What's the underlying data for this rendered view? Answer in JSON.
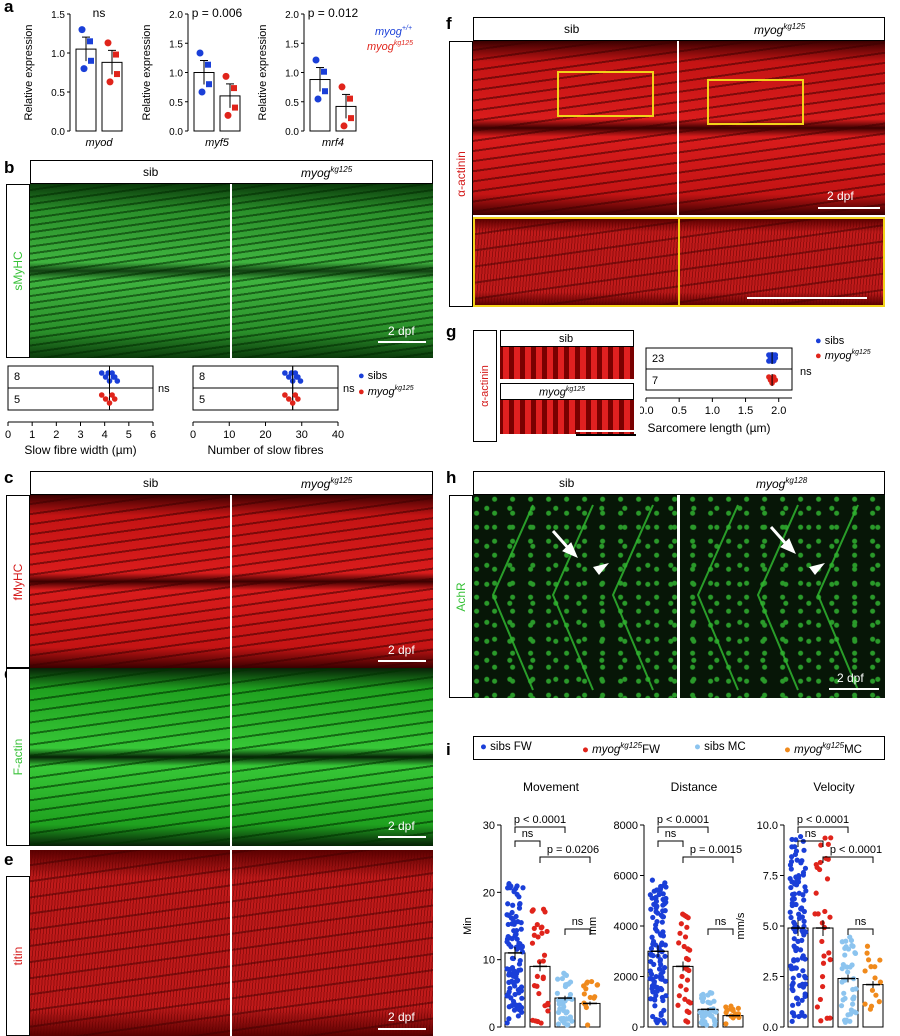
{
  "panels": {
    "a": {
      "label": "a",
      "legend": {
        "wt": "myog",
        "wt_sup": "+/+",
        "mut": "myog",
        "mut_sup": "kg125"
      },
      "charts": [
        {
          "gene": "myod",
          "stat": "ns",
          "ylabel": "Relative expression"
        },
        {
          "gene": "myf5",
          "stat": "p = 0.006",
          "ylabel": "Relative expression"
        },
        {
          "gene": "mrf4",
          "stat": "p = 0.012",
          "ylabel": "Relative expression"
        }
      ]
    },
    "b": {
      "label": "b",
      "sib": "sib",
      "mut": "myog",
      "mut_sup": "kg125",
      "side": "sMyHC",
      "scale": "2 dpf",
      "legend_sibs": "sibs",
      "legend_mut": "myog",
      "legend_mut_sup": "kg125",
      "plot1": {
        "xlabel": "Slow fibre width (µm)",
        "n_sib": "8",
        "n_mut": "5",
        "stat": "ns"
      },
      "plot2": {
        "xlabel": "Number of slow fibres",
        "n_sib": "8",
        "n_mut": "5",
        "stat": "ns"
      }
    },
    "c": {
      "label": "c",
      "sib": "sib",
      "mut": "myog",
      "mut_sup": "kg125",
      "side": "fMyHC",
      "scale": "2 dpf"
    },
    "d": {
      "label": "d",
      "side": "F-actin",
      "scale": "2 dpf"
    },
    "e": {
      "label": "e",
      "side": "titin",
      "scale": "2 dpf"
    },
    "f": {
      "label": "f",
      "sib": "sib",
      "mut": "myog",
      "mut_sup": "kg125",
      "side": "α-actinin",
      "scale": "2 dpf"
    },
    "g": {
      "label": "g",
      "sib": "sib",
      "mut": "myog",
      "mut_sup": "kg125",
      "side": "α-actinin",
      "legend_sibs": "sibs",
      "legend_mut": "myog",
      "legend_mut_sup": "kg125",
      "n_sib": "23",
      "n_mut": "7",
      "stat": "ns",
      "xlabel": "Sarcomere length (µm)"
    },
    "h": {
      "label": "h",
      "sib": "sib",
      "mut": "myog",
      "mut_sup": "kg128",
      "side": "AchR",
      "scale": "2 dpf"
    },
    "i": {
      "label": "i",
      "legend": [
        {
          "text": "sibs FW",
          "color": "#1a3fd8"
        },
        {
          "text": "myog",
          "sup": "kg125",
          "tail": "FW",
          "color": "#e0241b"
        },
        {
          "text": "sibs MC",
          "color": "#8cc4ef"
        },
        {
          "text": "myog",
          "sup": "kg125",
          "tail": "MC",
          "color": "#f08a1c"
        }
      ]
    }
  },
  "colors": {
    "sib": "#1a3fd8",
    "mut": "#e0241b",
    "sibMC": "#8cc4ef",
    "mutMC": "#f08a1c",
    "green": "#38c238",
    "red": "#d41a1a"
  },
  "chart_data": [
    {
      "type": "bar",
      "panel": "a",
      "gene": "myod",
      "categories": [
        "myog+/+",
        "myogkg125"
      ],
      "values": [
        1.05,
        0.88
      ],
      "ylim": [
        0,
        1.5
      ],
      "yticks": [
        "0.0",
        "0.5",
        "1.0",
        "1.5"
      ],
      "ylabel": "Relative expression"
    },
    {
      "type": "bar",
      "panel": "a",
      "gene": "myf5",
      "categories": [
        "myog+/+",
        "myogkg125"
      ],
      "values": [
        1.0,
        0.6
      ],
      "ylim": [
        0,
        2.0
      ],
      "yticks": [
        "0.0",
        "0.5",
        "1.0",
        "1.5",
        "2.0"
      ],
      "ylabel": "Relative expression"
    },
    {
      "type": "bar",
      "panel": "a",
      "gene": "mrf4",
      "categories": [
        "myog+/+",
        "myogkg125"
      ],
      "values": [
        0.88,
        0.42
      ],
      "ylim": [
        0,
        2.0
      ],
      "yticks": [
        "0.0",
        "0.5",
        "1.0",
        "1.5",
        "2.0"
      ],
      "ylabel": "Relative expression"
    },
    {
      "type": "scatter",
      "panel": "b",
      "xlabel": "Slow fibre width (µm)",
      "xticks": [
        "0",
        "1",
        "2",
        "3",
        "4",
        "5",
        "6"
      ],
      "xlim": [
        0,
        6
      ],
      "series": [
        {
          "name": "sibs",
          "mean": 4.2
        },
        {
          "name": "myogkg125",
          "mean": 4.2
        }
      ]
    },
    {
      "type": "scatter",
      "panel": "b",
      "xlabel": "Number of slow fibres",
      "xticks": [
        "0",
        "10",
        "20",
        "30",
        "40"
      ],
      "xlim": [
        0,
        40
      ],
      "series": [
        {
          "name": "sibs",
          "mean": 27.5
        },
        {
          "name": "myogkg125",
          "mean": 27.5
        }
      ]
    },
    {
      "type": "scatter",
      "panel": "g",
      "xlabel": "Sarcomere length (µm)",
      "xticks": [
        "0.0",
        "0.5",
        "1.0",
        "1.5",
        "2.0"
      ],
      "xlim": [
        0,
        2.2
      ],
      "series": [
        {
          "name": "sibs",
          "mean": 1.9
        },
        {
          "name": "myogkg125",
          "mean": 1.9
        }
      ]
    },
    {
      "type": "bar",
      "panel": "i",
      "title": "Movement",
      "ylabel": "Min",
      "ylim": [
        0,
        30
      ],
      "yticks": [
        "0",
        "10",
        "20",
        "30"
      ],
      "categories": [
        "sibs FW",
        "myogkg125 FW",
        "sibs MC",
        "myogkg125 MC"
      ],
      "values": [
        11,
        9,
        4.3,
        3.5
      ],
      "stats": [
        "p < 0.0001",
        "ns",
        "p = 0.0206",
        "ns"
      ]
    },
    {
      "type": "bar",
      "panel": "i",
      "title": "Distance",
      "ylabel": "mm",
      "ylim": [
        0,
        8000
      ],
      "yticks": [
        "0",
        "2000",
        "4000",
        "6000",
        "8000"
      ],
      "categories": [
        "sibs FW",
        "myogkg125 FW",
        "sibs MC",
        "myogkg125 MC"
      ],
      "values": [
        3000,
        2400,
        700,
        450
      ],
      "stats": [
        "p < 0.0001",
        "ns",
        "p = 0.0015",
        "ns"
      ]
    },
    {
      "type": "bar",
      "panel": "i",
      "title": "Velocity",
      "ylabel": "mm/s",
      "ylim": [
        0,
        10
      ],
      "yticks": [
        "0.0",
        "2.5",
        "5.0",
        "7.5",
        "10.0"
      ],
      "categories": [
        "sibs FW",
        "myogkg125 FW",
        "sibs MC",
        "myogkg125 MC"
      ],
      "values": [
        4.9,
        4.9,
        2.4,
        2.1
      ],
      "stats": [
        "p < 0.0001",
        "ns",
        "p < 0.0001",
        "ns"
      ]
    }
  ]
}
